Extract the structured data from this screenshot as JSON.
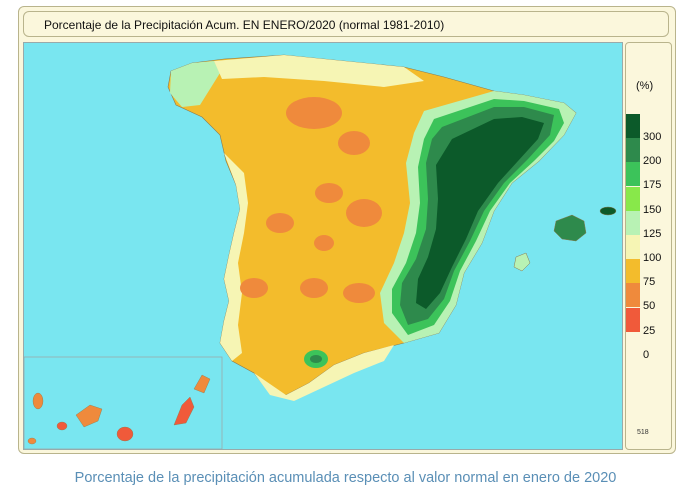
{
  "map": {
    "title": "Porcentaje de la Precipitación Acum. EN  ENERO/2020  (normal 1981-2010)",
    "code": "518",
    "colors": {
      "sea": "#79e6f0",
      "border": "#b4b0a0"
    }
  },
  "legend": {
    "unit": "(%)",
    "bands": [
      {
        "label": "300",
        "color": "#0c5a2a"
      },
      {
        "label": "200",
        "color": "#2e8a4c"
      },
      {
        "label": "175",
        "color": "#3cc35a"
      },
      {
        "label": "150",
        "color": "#88e84a"
      },
      {
        "label": "125",
        "color": "#b8f2b4"
      },
      {
        "label": "100",
        "color": "#f6f5b4"
      },
      {
        "label": "75",
        "color": "#f3bc2c"
      },
      {
        "label": "50",
        "color": "#ef8a3c"
      },
      {
        "label": "25",
        "color": "#f05a3a"
      },
      {
        "label": "0",
        "color": null
      }
    ]
  },
  "caption": "Porcentaje de la precipitación acumulada respecto al valor normal en enero de 2020"
}
